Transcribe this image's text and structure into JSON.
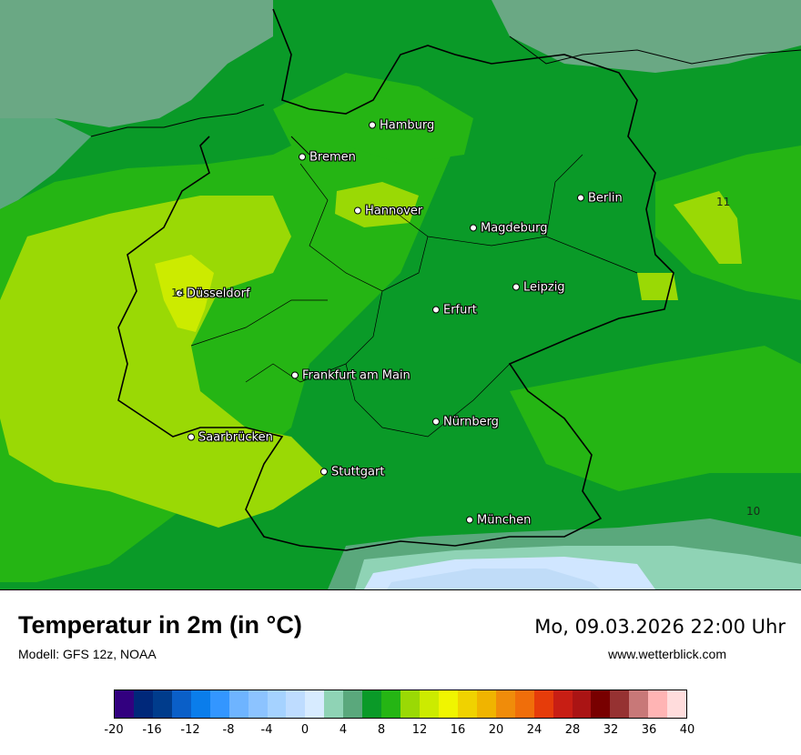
{
  "map": {
    "cities": [
      {
        "name": "Hamburg"
      },
      {
        "name": "Bremen"
      },
      {
        "name": "Hannover"
      },
      {
        "name": "Berlin"
      },
      {
        "name": "Magdeburg"
      },
      {
        "name": "Düsseldorf"
      },
      {
        "name": "Leipzig"
      },
      {
        "name": "Erfurt"
      },
      {
        "name": "Frankfurt am Main"
      },
      {
        "name": "Nürnberg"
      },
      {
        "name": "Saarbrücken"
      },
      {
        "name": "Stuttgart"
      },
      {
        "name": "München"
      }
    ],
    "isolines": [
      {
        "value": "11"
      },
      {
        "value": "14"
      },
      {
        "value": "10"
      }
    ],
    "colors": {
      "sea": "#6aa884",
      "c4": "#8fd3b5",
      "c6": "#5aa87c",
      "c8": "#0a9a28",
      "c10": "#25b514",
      "c12": "#9ad905",
      "c14": "#cceb00",
      "pale": "#d0e6ff",
      "lightblue": "#c0dcf8"
    }
  },
  "footer": {
    "title": "Temperatur in 2m (in °C)",
    "model": "Modell: GFS 12z, NOAA",
    "datetime": "Mo, 09.03.2026 22:00 Uhr",
    "site": "www.wetterblick.com"
  },
  "legend": {
    "colors": [
      "#32007f",
      "#00287a",
      "#003c8c",
      "#0a5fc8",
      "#0a7deb",
      "#3396ff",
      "#6eb4ff",
      "#8cc3ff",
      "#a5d2ff",
      "#bedcff",
      "#d7ebff",
      "#8fd3b5",
      "#5aa87c",
      "#0a9a28",
      "#25b514",
      "#9ad905",
      "#cceb00",
      "#f0f500",
      "#f0d200",
      "#f0b400",
      "#f08c0a",
      "#f06e0a",
      "#e63c0a",
      "#c81e14",
      "#aa1414",
      "#780000",
      "#963232",
      "#c87878",
      "#ffb4b4",
      "#ffdcdc"
    ],
    "ticks": [
      "-20",
      "-16",
      "-12",
      "-8",
      "-4",
      "0",
      "4",
      "8",
      "12",
      "16",
      "20",
      "24",
      "28",
      "32",
      "36",
      "40"
    ]
  }
}
